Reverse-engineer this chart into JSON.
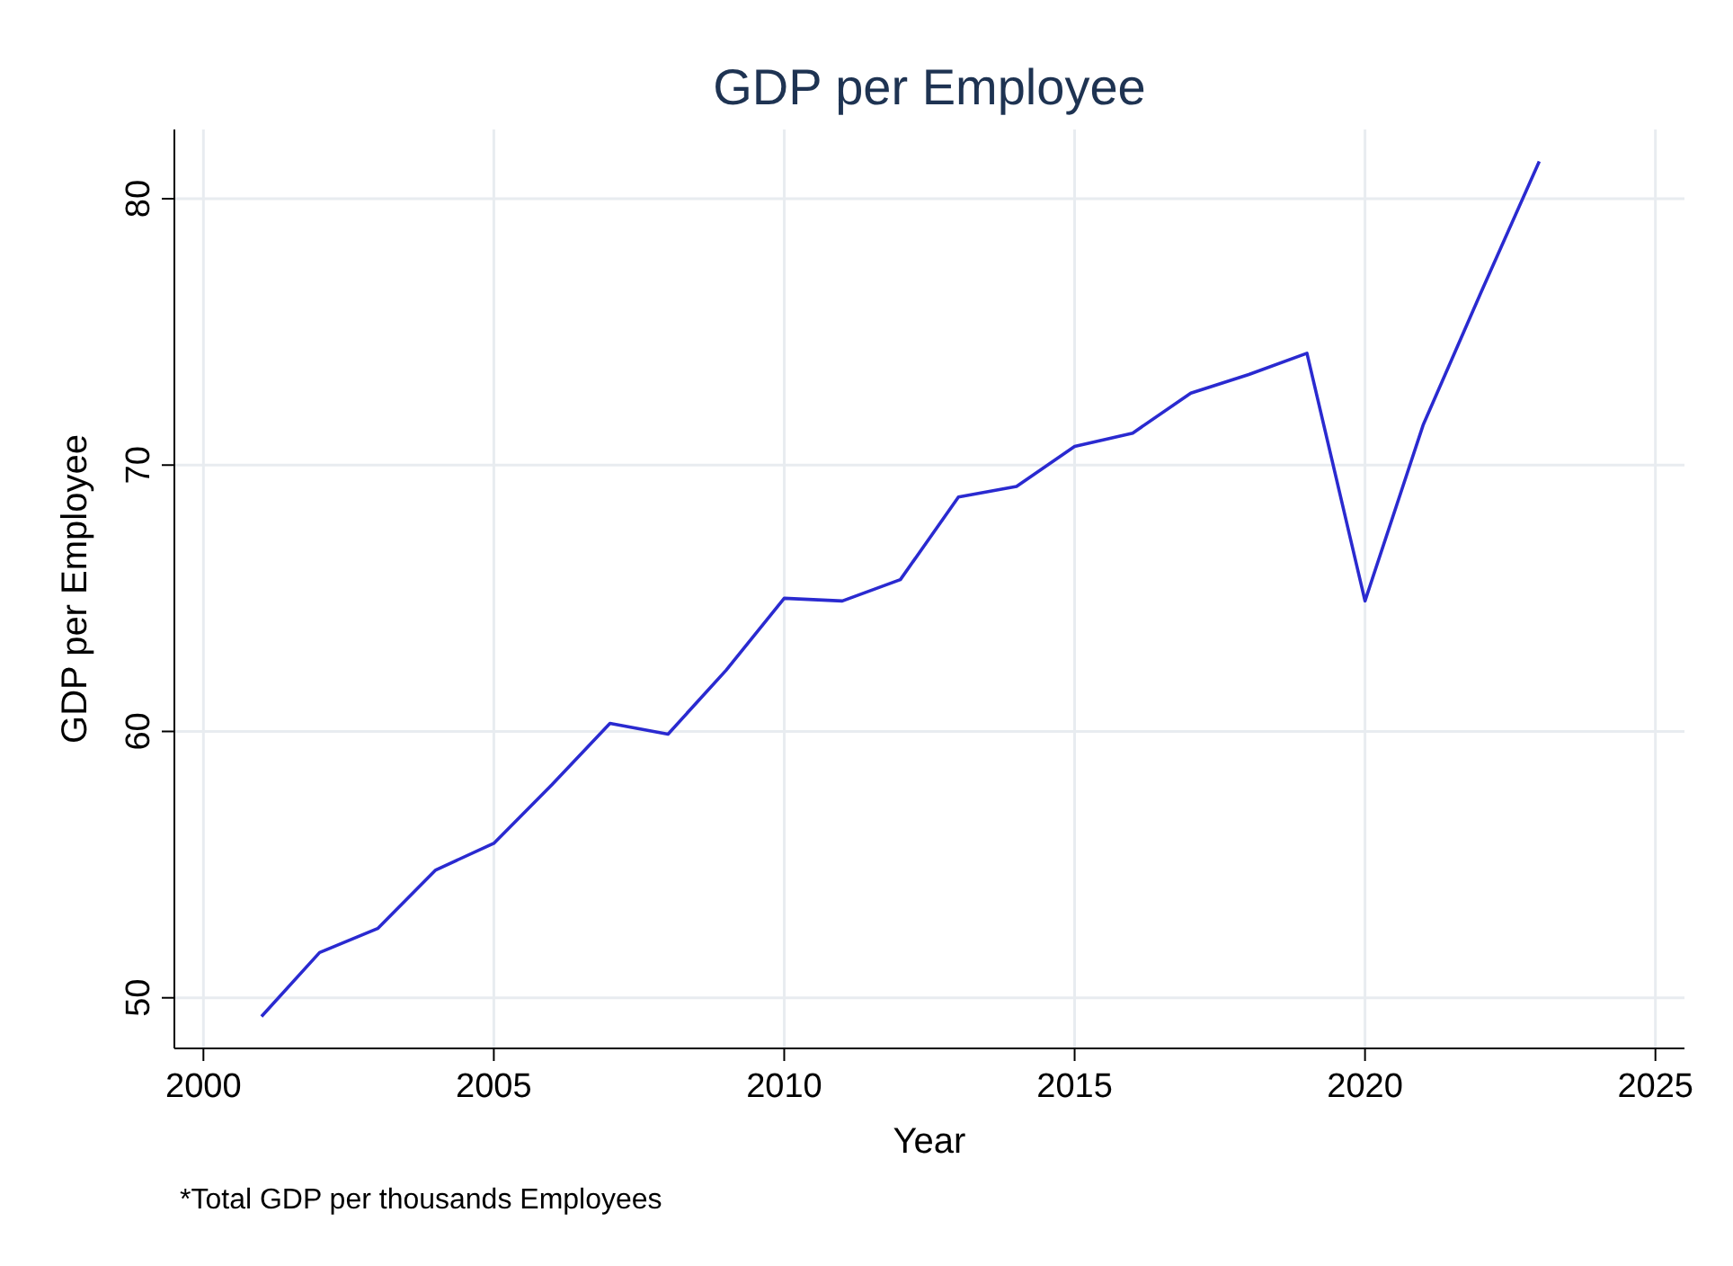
{
  "chart_data": {
    "type": "line",
    "title": "GDP per Employee",
    "xlabel": "Year",
    "ylabel": "GDP per Employee",
    "annotations": [
      "*Total GDP per thousands Employees"
    ],
    "x": [
      2001,
      2002,
      2003,
      2004,
      2005,
      2006,
      2007,
      2008,
      2009,
      2010,
      2011,
      2012,
      2013,
      2014,
      2015,
      2016,
      2017,
      2018,
      2019,
      2020,
      2021,
      2022,
      2023
    ],
    "series": [
      {
        "color": "#2a2ad0",
        "values": [
          49.3,
          51.7,
          52.6,
          54.8,
          55.8,
          58.0,
          60.3,
          59.9,
          62.3,
          65.0,
          64.9,
          65.7,
          68.8,
          69.2,
          70.7,
          71.2,
          72.7,
          73.4,
          74.2,
          64.9,
          71.5,
          76.5,
          81.4
        ]
      }
    ],
    "xlim": [
      1999.5,
      2025.5
    ],
    "xticks": [
      2000,
      2005,
      2010,
      2015,
      2020,
      2025
    ],
    "ylim": [
      48.1,
      82.6
    ],
    "yticks": [
      50,
      60,
      70,
      80
    ],
    "grid": true,
    "marker": "none",
    "line_style": "solid"
  }
}
